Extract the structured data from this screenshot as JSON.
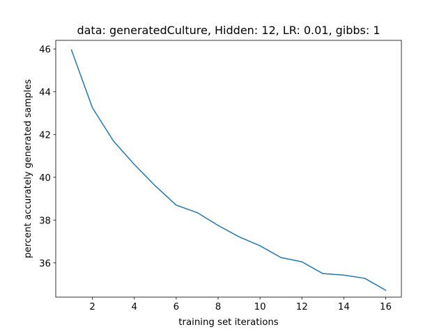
{
  "chart_data": {
    "type": "line",
    "title": "data: generatedCulture, Hidden: 12, LR: 0.01, gibbs: 1",
    "xlabel": "training set iterations",
    "ylabel": "percent accurately generated samples",
    "xlim": [
      0.25,
      16.75
    ],
    "ylim": [
      34.4,
      46.4
    ],
    "xticks": [
      2,
      4,
      6,
      8,
      10,
      12,
      14,
      16
    ],
    "yticks": [
      36,
      38,
      40,
      42,
      44,
      46
    ],
    "grid": false,
    "series": [
      {
        "color": "#1f77b4",
        "x": [
          1,
          2,
          3,
          4,
          5,
          6,
          7,
          8,
          9,
          10,
          11,
          12,
          13,
          14,
          15,
          16
        ],
        "y": [
          45.95,
          43.25,
          41.7,
          40.6,
          39.6,
          38.7,
          38.35,
          37.75,
          37.22,
          36.8,
          36.25,
          36.05,
          35.5,
          35.43,
          35.28,
          34.72
        ]
      }
    ]
  }
}
